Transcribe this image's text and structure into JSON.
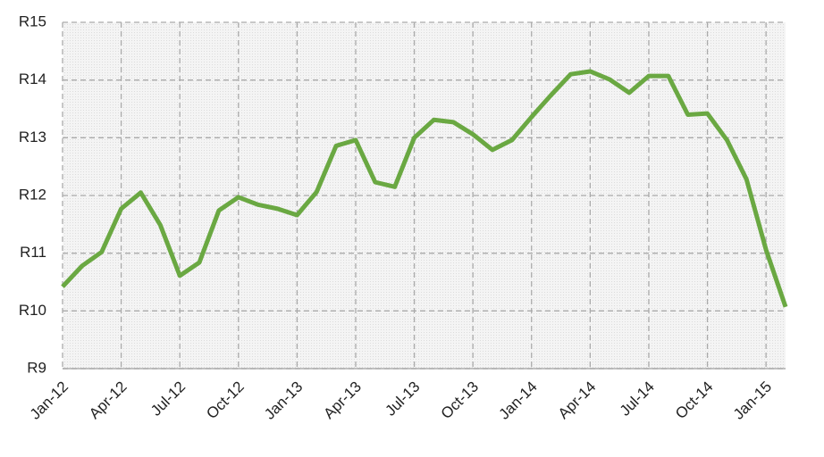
{
  "chart_data": {
    "type": "line",
    "categories": [
      "Jan-12",
      null,
      null,
      "Apr-12",
      null,
      null,
      "Jul-12",
      null,
      null,
      "Oct-12",
      null,
      null,
      "Jan-13",
      null,
      null,
      "Apr-13",
      null,
      null,
      "Jul-13",
      null,
      null,
      "Oct-13",
      null,
      null,
      "Jan-14",
      null,
      null,
      "Apr-14",
      null,
      null,
      "Jul-14",
      null,
      null,
      "Oct-14",
      null,
      null,
      "Jan-15",
      null
    ],
    "series": [
      {
        "color": "#6aa842",
        "values": [
          10.42,
          10.78,
          11.02,
          11.77,
          12.05,
          11.49,
          10.61,
          10.84,
          11.74,
          11.97,
          11.84,
          11.77,
          11.66,
          12.06,
          12.86,
          12.96,
          12.23,
          12.15,
          13.0,
          13.31,
          13.27,
          13.06,
          12.79,
          12.96,
          13.36,
          13.74,
          14.1,
          14.15,
          14.01,
          13.78,
          14.07,
          14.07,
          13.4,
          13.42,
          12.96,
          12.28,
          11.06,
          10.07
        ]
      }
    ],
    "ylim": [
      9,
      15
    ],
    "yticks": [
      {
        "value": 9,
        "label": "R9"
      },
      {
        "value": 10,
        "label": "R10"
      },
      {
        "value": 11,
        "label": "R11"
      },
      {
        "value": 12,
        "label": "R12"
      },
      {
        "value": 13,
        "label": "R13"
      },
      {
        "value": 14,
        "label": "R14"
      },
      {
        "value": 15,
        "label": "R15"
      }
    ],
    "grid": true
  }
}
